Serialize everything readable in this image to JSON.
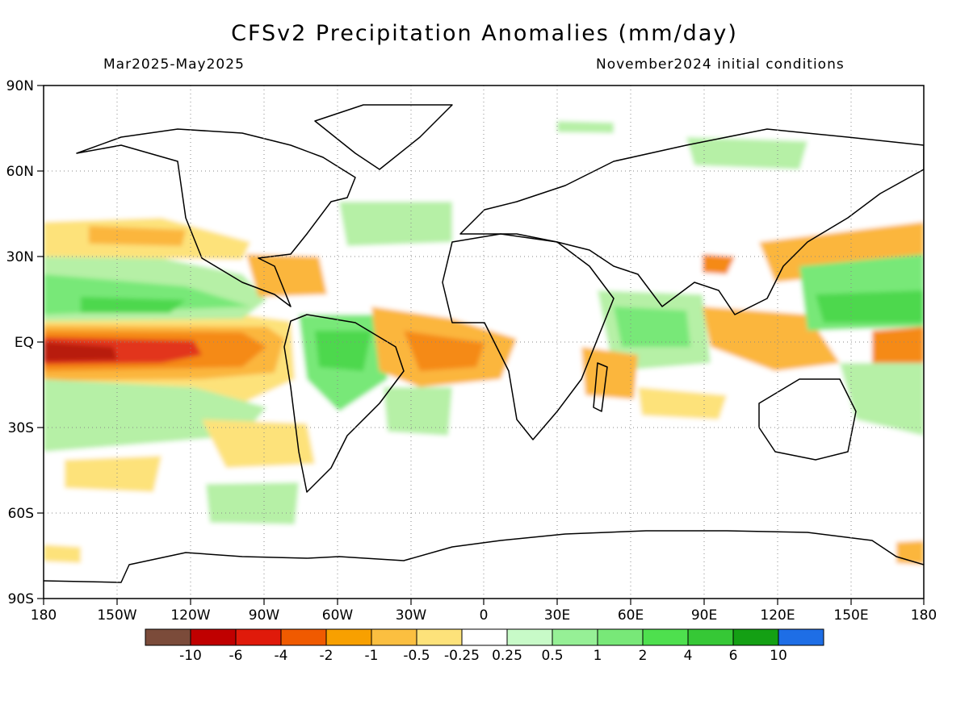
{
  "title": "CFSv2 Precipitation Anomalies (mm/day)",
  "period": "Mar2025-May2025",
  "init": "November2024 initial conditions",
  "axes": {
    "x_ticks": [
      "180",
      "150W",
      "120W",
      "90W",
      "60W",
      "30W",
      "0",
      "30E",
      "60E",
      "90E",
      "120E",
      "150E",
      "180"
    ],
    "y_ticks": [
      "90N",
      "60N",
      "30N",
      "EQ",
      "30S",
      "60S",
      "90S"
    ]
  },
  "colorbar": {
    "colors": [
      "#7b4b3a",
      "#c00000",
      "#e01a0a",
      "#f05a00",
      "#f8a000",
      "#fbbf40",
      "#fde27a",
      "#ffffff",
      "#c8fac8",
      "#96f096",
      "#78e878",
      "#4ee04e",
      "#36c836",
      "#14a014",
      "#1e6ee6"
    ],
    "labels": [
      "-10",
      "-6",
      "-4",
      "-2",
      "-1",
      "-0.5",
      "-0.25",
      "0.25",
      "0.5",
      "1",
      "2",
      "4",
      "6",
      "10"
    ]
  },
  "colors": {
    "red_dark": "#b81c0a",
    "red": "#e2361a",
    "orange": "#f58a18",
    "orange_light": "#fbb63c",
    "yellow": "#fde27a",
    "green_light": "#b6f0a6",
    "green": "#78e878",
    "green_mid": "#4ed84e"
  }
}
